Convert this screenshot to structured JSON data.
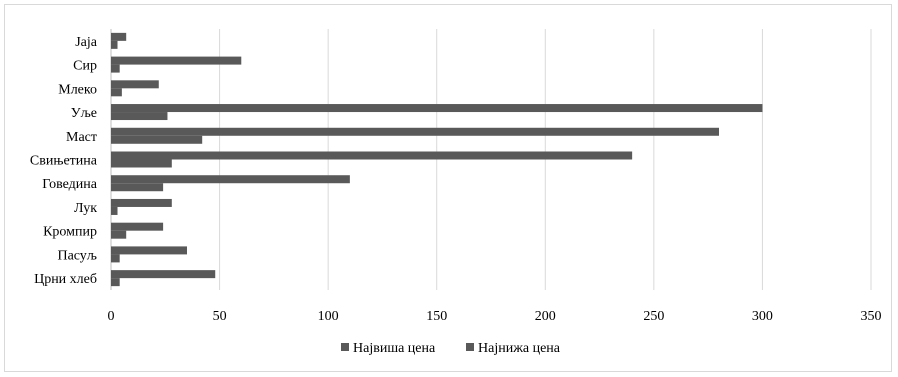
{
  "chart_data": {
    "type": "bar",
    "orientation": "horizontal",
    "categories": [
      "Јаја",
      "Сир",
      "Млеко",
      "Уље",
      "Маст",
      "Свињетина",
      "Говедина",
      "Лук",
      "Кромпир",
      "Пасуљ",
      "Црни хлеб"
    ],
    "series": [
      {
        "name": "Највиша цена",
        "values": [
          7,
          60,
          22,
          300,
          280,
          240,
          110,
          28,
          24,
          35,
          48
        ]
      },
      {
        "name": "Најнижа цена",
        "values": [
          3,
          4,
          5,
          26,
          42,
          28,
          24,
          3,
          7,
          4,
          4
        ]
      }
    ],
    "xlim": [
      0,
      350
    ],
    "xticks": [
      0,
      50,
      100,
      150,
      200,
      250,
      300,
      350
    ],
    "grid": "vertical",
    "legend_position": "bottom",
    "title": "",
    "xlabel": "",
    "ylabel": "",
    "colors": {
      "series": [
        "#595959",
        "#595959"
      ],
      "grid": "#d9d9d9"
    }
  }
}
